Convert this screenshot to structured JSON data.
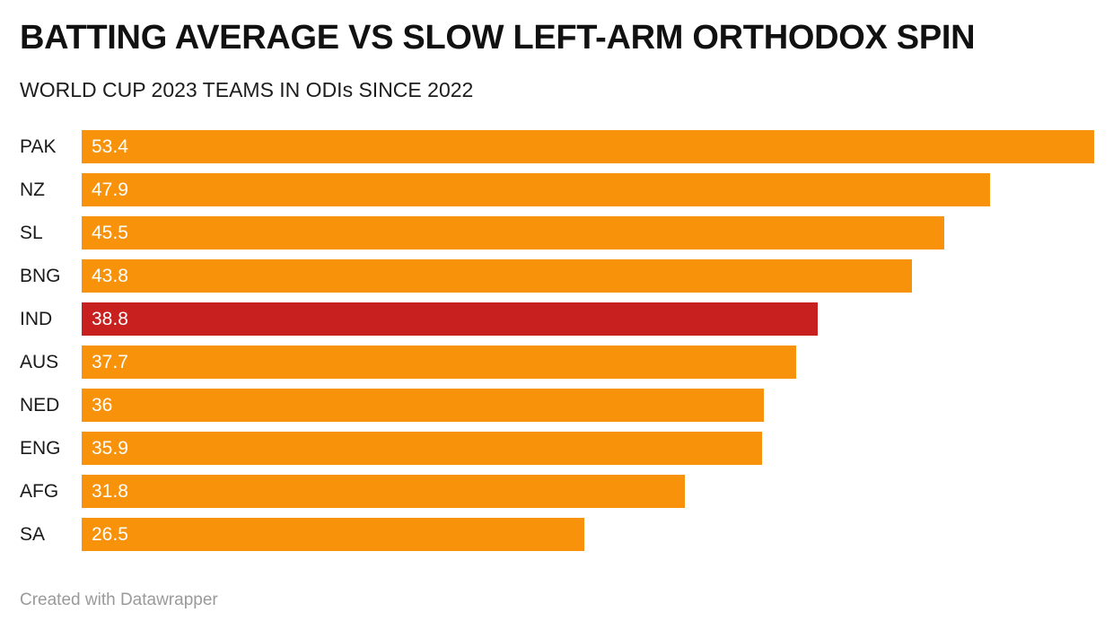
{
  "header": {
    "title": "BATTING AVERAGE VS SLOW LEFT-ARM ORTHODOX SPIN",
    "subtitle": "WORLD CUP 2023 TEAMS IN ODIs SINCE 2022"
  },
  "chart_data": {
    "type": "bar",
    "orientation": "horizontal",
    "title": "BATTING AVERAGE VS SLOW LEFT-ARM ORTHODOX SPIN",
    "subtitle": "WORLD CUP 2023 TEAMS IN ODIs SINCE 2022",
    "categories": [
      "PAK",
      "NZ",
      "SL",
      "BNG",
      "IND",
      "AUS",
      "NED",
      "ENG",
      "AFG",
      "SA"
    ],
    "values": [
      53.4,
      47.9,
      45.5,
      43.8,
      38.8,
      37.7,
      36,
      35.9,
      31.8,
      26.5
    ],
    "value_labels": [
      "53.4",
      "47.9",
      "45.5",
      "43.8",
      "38.8",
      "37.7",
      "36",
      "35.9",
      "31.8",
      "26.5"
    ],
    "xlim": [
      0,
      53.4
    ],
    "bar_color": "#F7920A",
    "highlight_category": "IND",
    "highlight_color": "#C7201F",
    "value_label_color": "#FFFFFF",
    "grid": "off",
    "legend": "none"
  },
  "footer": {
    "attribution": "Created with Datawrapper"
  }
}
